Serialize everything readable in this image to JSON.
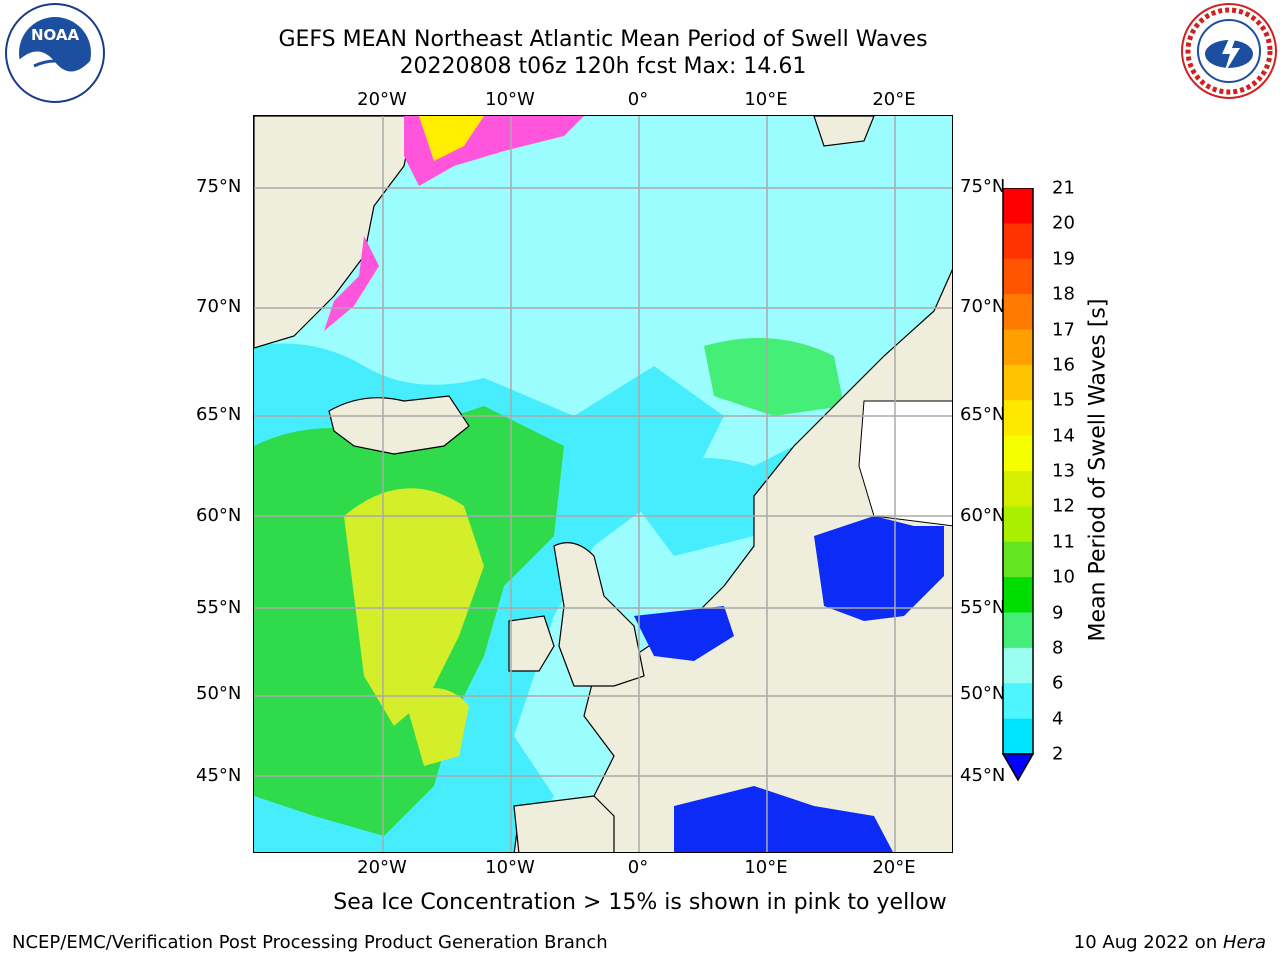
{
  "header": {
    "title_line1": "GEFS MEAN Northeast Atlantic Mean Period of Swell Waves",
    "title_line2": "20220808 t06z 120h fcst   Max: 14.61"
  },
  "logos": {
    "noaa": "NOAA",
    "noaa_ring": "NATIONAL OCEANIC AND ATMOSPHERIC ADMINISTRATION · U.S. DEPARTMENT OF COMMERCE",
    "nws_ring": "NATIONAL WEATHER SERVICE"
  },
  "map": {
    "lon_ticks": [
      "20°W",
      "10°W",
      "0°",
      "10°E",
      "20°E"
    ],
    "lat_ticks": [
      "75°N",
      "70°N",
      "65°N",
      "60°N",
      "55°N",
      "50°N",
      "45°N"
    ],
    "colors": {
      "land": "#efeedd",
      "ocean_light": "#9cfdfe",
      "ocean_mid": "#46eefd",
      "green": "#2cd62c",
      "yellow_green": "#d4ef2a",
      "blue": "#0c2bf7",
      "gridline": "#aaaaaa"
    }
  },
  "colorbar": {
    "title": "Mean Period of Swell Waves [s]",
    "levels": [
      "21",
      "20",
      "19",
      "18",
      "17",
      "16",
      "15",
      "14",
      "13",
      "12",
      "11",
      "10",
      "9",
      "8",
      "6",
      "4",
      "2"
    ],
    "colors": [
      "#ff0000",
      "#ff3300",
      "#ff5500",
      "#ff7a00",
      "#ff9f00",
      "#ffc400",
      "#ffe800",
      "#f6ff00",
      "#d4f000",
      "#aaee00",
      "#66e522",
      "#00dd00",
      "#44ee77",
      "#99fdf0",
      "#4ef5ff",
      "#00e5ff",
      "#0066ff",
      "#0000ff"
    ]
  },
  "caption": "Sea Ice Concentration > 15% is shown in pink to yellow",
  "footer": {
    "left": "NCEP/EMC/Verification Post Processing Product Generation Branch",
    "right_date": "10 Aug 2022 on ",
    "right_host": "Hera"
  }
}
